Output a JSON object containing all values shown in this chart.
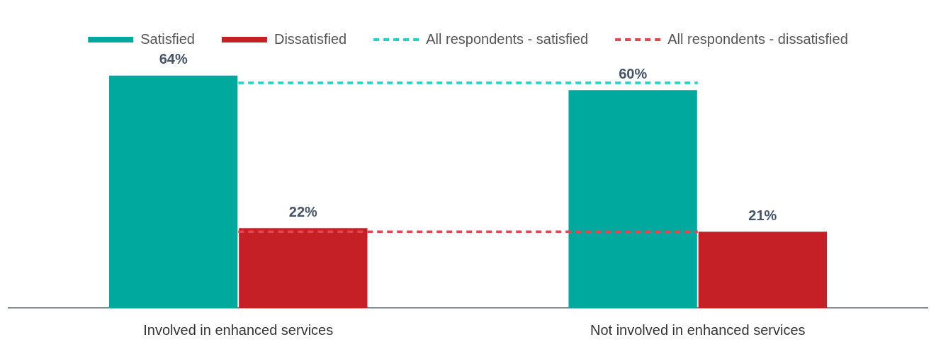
{
  "chart_data": {
    "type": "bar",
    "categories": [
      "Involved in enhanced services",
      "Not involved in enhanced services"
    ],
    "series": [
      {
        "name": "Satisfied",
        "color": "#00a99d",
        "values": [
          64,
          60
        ],
        "value_labels": [
          "64%",
          "60%"
        ]
      },
      {
        "name": "Dissatisfied",
        "color": "#c42026",
        "values": [
          22,
          21
        ],
        "value_labels": [
          "22%",
          "21%"
        ]
      },
      {
        "name": "All respondents - satisfied",
        "type": "line",
        "color": "#1ad5c8",
        "values": [
          62,
          62
        ],
        "line_style": "dashed",
        "marker": "none"
      },
      {
        "name": "All respondents - dissatisfied",
        "type": "line",
        "color": "#e0474f",
        "values": [
          21,
          21
        ],
        "line_style": "dashed",
        "marker": "none"
      }
    ],
    "tick_labels": "x",
    "grid": false,
    "legend": "top"
  }
}
